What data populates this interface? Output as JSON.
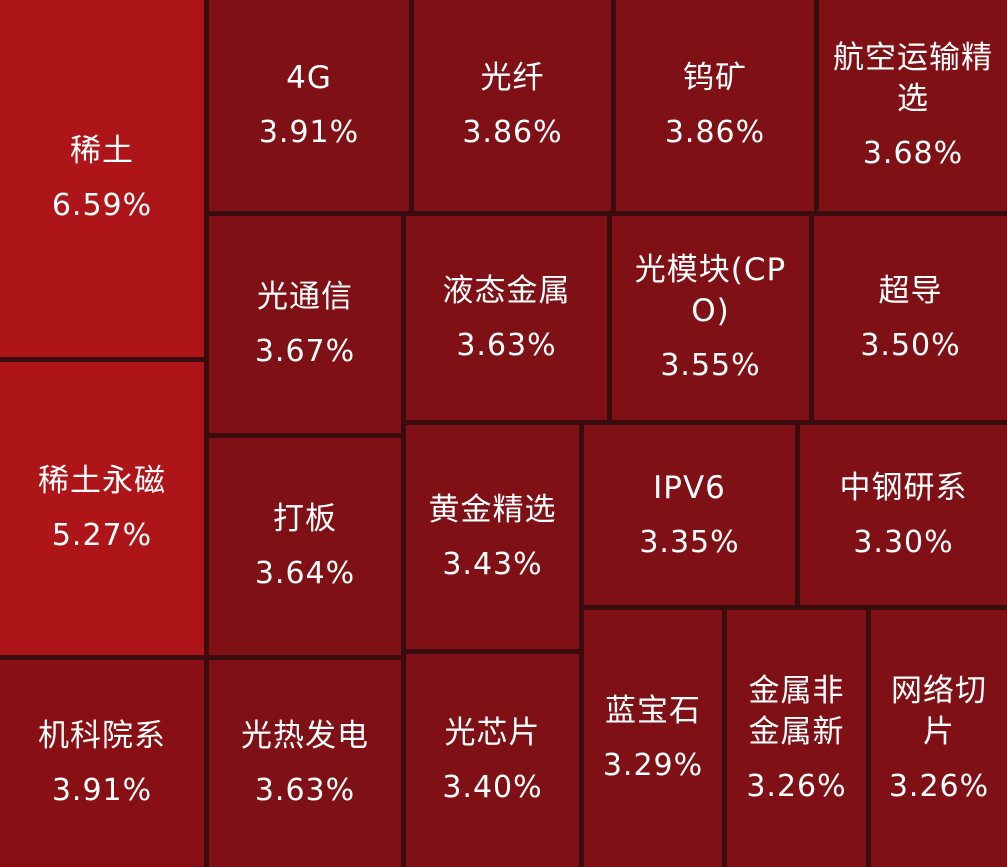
{
  "chart_data": {
    "type": "treemap",
    "colors": {
      "strong": "#ae1519",
      "mid": "#880f14",
      "base": "#7f1016",
      "gap": "#3a0c10"
    },
    "items": [
      {
        "name": "稀土",
        "value": "6.59%"
      },
      {
        "name": "稀土永磁",
        "value": "5.27%"
      },
      {
        "name": "机科院系",
        "value": "3.91%"
      },
      {
        "name": "4G",
        "value": "3.91%"
      },
      {
        "name": "光纤",
        "value": "3.86%"
      },
      {
        "name": "钨矿",
        "value": "3.86%"
      },
      {
        "name": "航空运输精选",
        "value": "3.68%"
      },
      {
        "name": "光通信",
        "value": "3.67%"
      },
      {
        "name": "液态金属",
        "value": "3.63%"
      },
      {
        "name": "光模块(CPO)",
        "value": "3.55%"
      },
      {
        "name": "超导",
        "value": "3.50%"
      },
      {
        "name": "打板",
        "value": "3.64%"
      },
      {
        "name": "黄金精选",
        "value": "3.43%"
      },
      {
        "name": "IPV6",
        "value": "3.35%"
      },
      {
        "name": "中钢研系",
        "value": "3.30%"
      },
      {
        "name": "光热发电",
        "value": "3.63%"
      },
      {
        "name": "光芯片",
        "value": "3.40%"
      },
      {
        "name": "蓝宝石",
        "value": "3.29%"
      },
      {
        "name": "金属非金属新",
        "value": "3.26%"
      },
      {
        "name": "网络切片",
        "value": "3.26%"
      }
    ]
  }
}
